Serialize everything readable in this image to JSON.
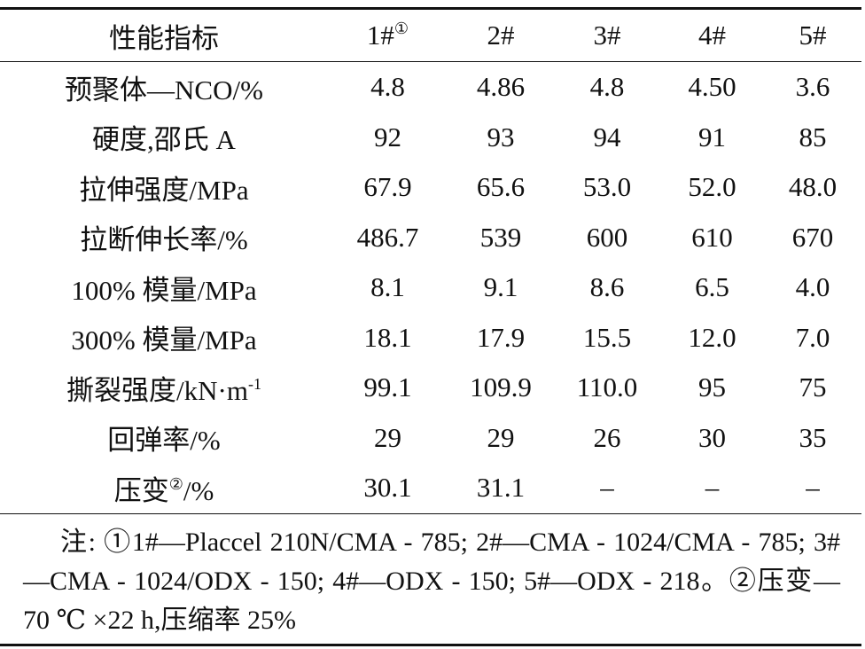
{
  "table": {
    "header": [
      "性能指标",
      {
        "text": "1#",
        "note": "①"
      },
      "2#",
      "3#",
      "4#",
      "5#"
    ],
    "rows": [
      [
        "预聚体—NCO/%",
        "4.8",
        "4.86",
        "4.8",
        "4.50",
        "3.6"
      ],
      [
        "硬度,邵氏 A",
        "92",
        "93",
        "94",
        "91",
        "85"
      ],
      [
        "拉伸强度/MPa",
        "67.9",
        "65.6",
        "53.0",
        "52.0",
        "48.0"
      ],
      [
        "拉断伸长率/%",
        "486.7",
        "539",
        "600",
        "610",
        "670"
      ],
      [
        "100% 模量/MPa",
        "8.1",
        "9.1",
        "8.6",
        "6.5",
        "4.0"
      ],
      [
        "300% 模量/MPa",
        "18.1",
        "17.9",
        "15.5",
        "12.0",
        "7.0"
      ],
      [
        {
          "text": "撕裂强度/kN·m",
          "sup": "-1"
        },
        "99.1",
        "109.9",
        "110.0",
        "95",
        "75"
      ],
      [
        "回弹率/%",
        "29",
        "29",
        "26",
        "30",
        "35"
      ],
      [
        {
          "text": "压变",
          "note": "②",
          "unit": "/%"
        },
        "30.1",
        "31.1",
        "–",
        "–",
        "–"
      ]
    ],
    "footnote": "注: ①1#—Placcel 210N/CMA - 785; 2#—CMA - 1024/CMA - 785; 3#—CMA - 1024/ODX - 150; 4#—ODX - 150; 5#—ODX - 218。②压变—70 ℃ ×22 h,压缩率 25%"
  }
}
